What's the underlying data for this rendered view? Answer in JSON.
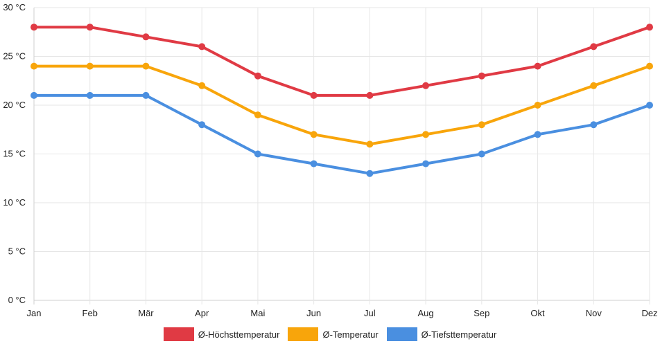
{
  "chart_data": {
    "type": "line",
    "title": "",
    "xlabel": "",
    "ylabel": "",
    "categories": [
      "Jan",
      "Feb",
      "Mär",
      "Apr",
      "Mai",
      "Jun",
      "Jul",
      "Aug",
      "Sep",
      "Okt",
      "Nov",
      "Dez"
    ],
    "ylim": [
      0,
      30
    ],
    "yticks": [
      0,
      5,
      10,
      15,
      20,
      25,
      30
    ],
    "ytick_labels": [
      "0 °C",
      "5 °C",
      "10 °C",
      "15 °C",
      "20 °C",
      "25 °C",
      "30 °C"
    ],
    "grid": true,
    "legend_position": "bottom",
    "series": [
      {
        "name": "Ø-Höchsttemperatur",
        "color": "#e03a44",
        "values": [
          28,
          28,
          27,
          26,
          23,
          21,
          21,
          22,
          23,
          24,
          26,
          28
        ]
      },
      {
        "name": "Ø-Temperatur",
        "color": "#f8a50b",
        "values": [
          24,
          24,
          24,
          22,
          19,
          17,
          16,
          17,
          18,
          20,
          22,
          24
        ]
      },
      {
        "name": "Ø-Tiefsttemperatur",
        "color": "#4a8fe0",
        "values": [
          21,
          21,
          21,
          18,
          15,
          14,
          13,
          14,
          15,
          17,
          18,
          20
        ]
      }
    ]
  }
}
